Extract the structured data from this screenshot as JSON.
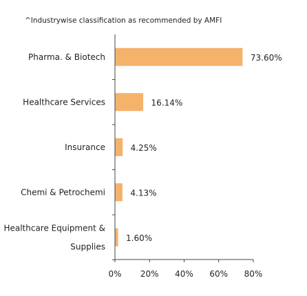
{
  "note": "^Industrywise classification as recommended by AMFI",
  "colors": {
    "bar": "#F4B26B",
    "axis": "#444444",
    "text": "#222222"
  },
  "chart_data": {
    "type": "bar",
    "orientation": "horizontal",
    "categories": [
      "Pharma. & Biotech",
      "Healthcare Services",
      "Insurance",
      "Chemi & Petrochemi",
      "Healthcare Equipment & Supplies"
    ],
    "category_lines": [
      [
        "Pharma. & Biotech"
      ],
      [
        "Healthcare Services"
      ],
      [
        "Insurance"
      ],
      [
        "Chemi & Petrochemi"
      ],
      [
        "Healthcare Equipment &",
        "Supplies"
      ]
    ],
    "values": [
      73.6,
      16.14,
      4.25,
      4.13,
      1.6
    ],
    "value_labels": [
      "73.60%",
      "16.14%",
      "4.25%",
      "4.13%",
      "1.60%"
    ],
    "xlim": [
      0,
      80
    ],
    "xticks": [
      0,
      20,
      40,
      60,
      80
    ],
    "xtick_labels": [
      "0%",
      "20%",
      "40%",
      "60%",
      "80%"
    ],
    "title": "",
    "xlabel": "",
    "ylabel": "",
    "grid": false,
    "legend": "none"
  }
}
